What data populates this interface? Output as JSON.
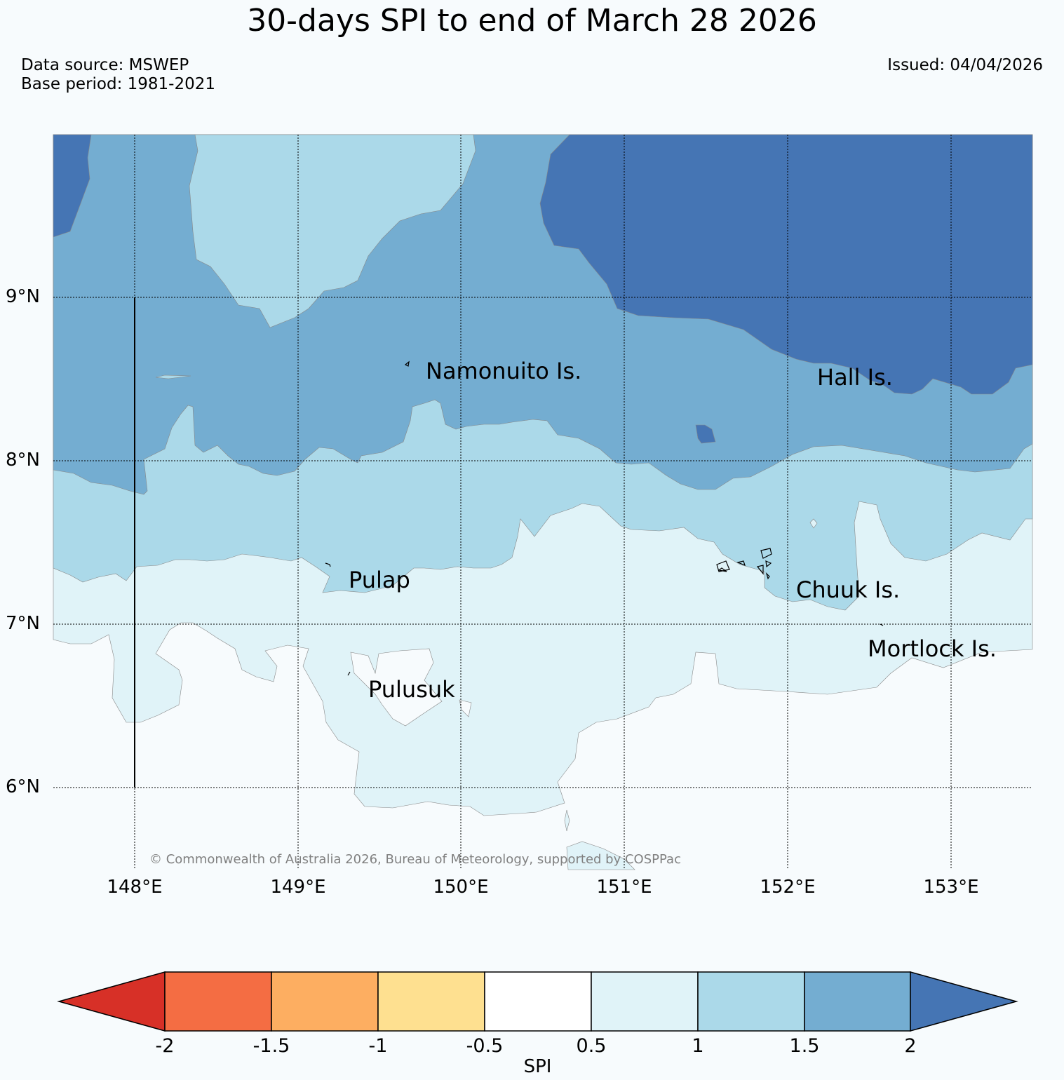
{
  "title": "30-days SPI to end of March 28 2026",
  "source": "Data source: MSWEP",
  "base_period": "Base period: 1981-2021",
  "issued": "Issued: 04/04/2026",
  "copyright": "© Commonwealth of Australia 2026, Bureau of Meteorology, supported by COSPPac",
  "lat_labels": [
    "9°N",
    "8°N",
    "7°N",
    "6°N"
  ],
  "lon_labels": [
    "148°E",
    "149°E",
    "150°E",
    "151°E",
    "152°E",
    "153°E"
  ],
  "places": [
    {
      "name": "Namonuito Is."
    },
    {
      "name": "Hall Is."
    },
    {
      "name": "Pulap"
    },
    {
      "name": "Chuuk Is."
    },
    {
      "name": "Mortlock Is."
    },
    {
      "name": "Pulusuk"
    }
  ],
  "colorbar": {
    "label": "SPI",
    "ticks": [
      "-2",
      "-1.5",
      "-1",
      "-0.5",
      "0.5",
      "1",
      "1.5",
      "2"
    ],
    "colors": {
      "below_-2": "#d73027",
      "-2_-1.5": "#f46d43",
      "-1.5_-1": "#fdae61",
      "-1_-0.5": "#fee090",
      "-0.5_0.5": "#ffffff",
      "0.5_1": "#e0f3f8",
      "1_1.5": "#abd9e9",
      "1.5_2": "#74add1",
      "above_2": "#4575b4"
    }
  }
}
